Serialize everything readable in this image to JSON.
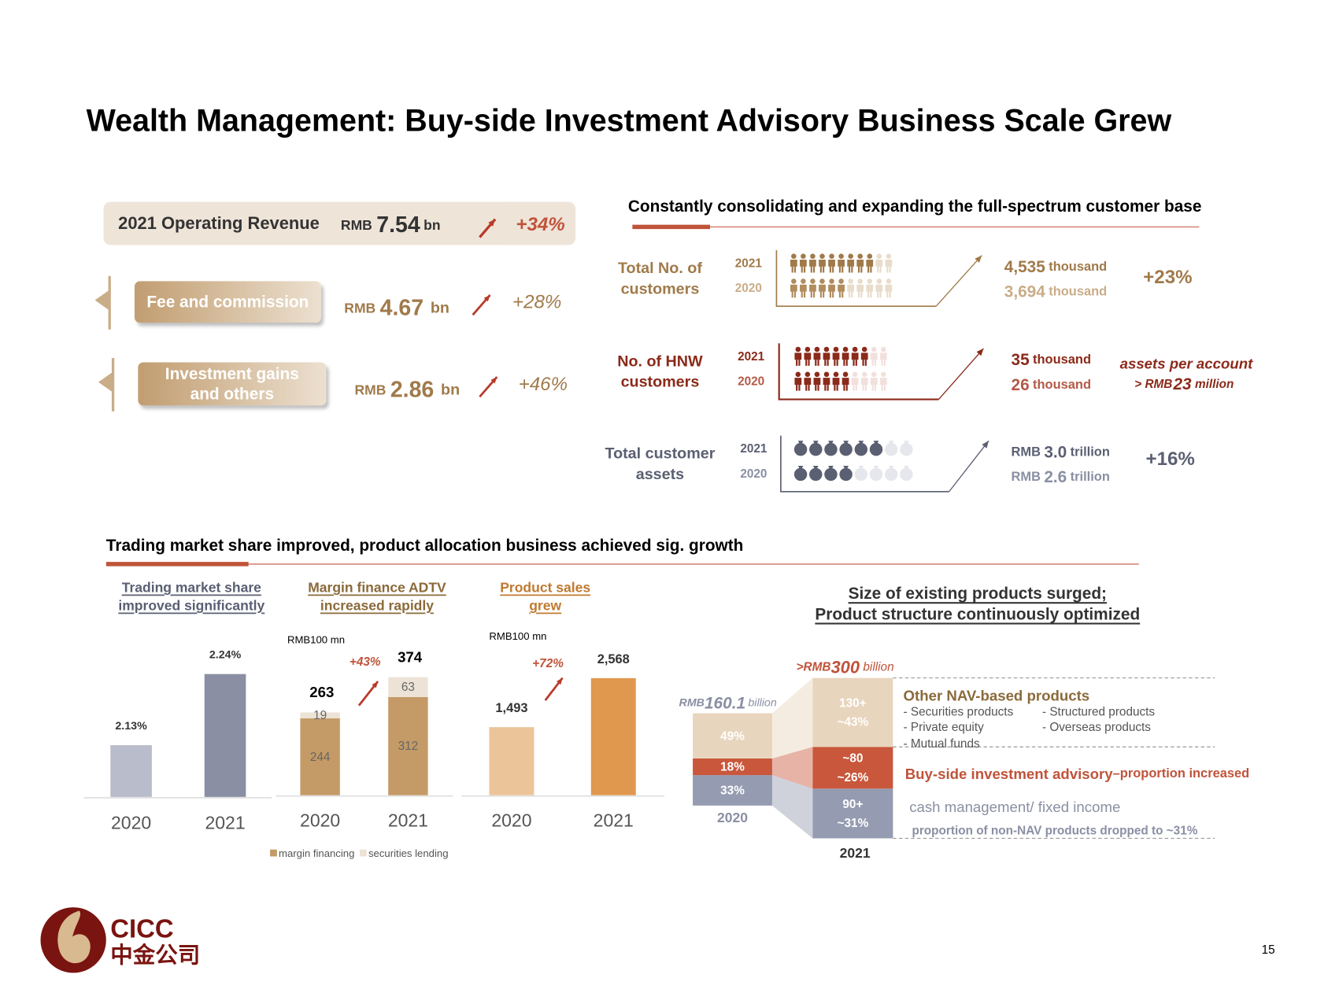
{
  "title": "Wealth Management: Buy-side Investment Advisory Business Scale Grew",
  "revenue": {
    "label": "2021 Operating Revenue",
    "currency": "RMB",
    "value": "7.54",
    "unit": "bn",
    "growth": "+34%",
    "items": [
      {
        "label": [
          "Fee and commission"
        ],
        "currency": "RMB",
        "value": "4.67",
        "unit": "bn",
        "growth": "+28%"
      },
      {
        "label": [
          "Investment gains",
          "and others"
        ],
        "currency": "RMB",
        "value": "2.86",
        "unit": "bn",
        "growth": "+46%"
      }
    ]
  },
  "customers": {
    "heading": "Constantly consolidating and expanding the full-spectrum customer base",
    "rows": [
      {
        "label": [
          "Total No. of",
          "customers"
        ],
        "years": [
          "2021",
          "2020"
        ],
        "amounts": [
          {
            "value": "4,535",
            "unit": "thousand"
          },
          {
            "value": "3,694",
            "unit": "thousand"
          }
        ],
        "growth": "+23%"
      },
      {
        "label": [
          "No. of HNW",
          "customers"
        ],
        "years": [
          "2021",
          "2020"
        ],
        "amounts": [
          {
            "value": "35",
            "unit": "thousand"
          },
          {
            "value": "26",
            "unit": "thousand"
          }
        ],
        "note": {
          "line1": "assets per account",
          "prefix": "> RMB",
          "value": "23",
          "unit": "million"
        }
      },
      {
        "label": [
          "Total customer",
          "assets"
        ],
        "years": [
          "2021",
          "2020"
        ],
        "amounts": [
          {
            "prefix": "RMB",
            "value": "3.0",
            "unit": "trillion"
          },
          {
            "prefix": "RMB",
            "value": "2.6",
            "unit": "trillion"
          }
        ],
        "growth": "+16%"
      }
    ]
  },
  "trading": {
    "heading": "Trading market share improved, product allocation business achieved sig. growth"
  },
  "chart_data": [
    {
      "type": "bar",
      "title": [
        "Trading market share",
        "improved significantly"
      ],
      "categories": [
        "2020",
        "2021"
      ],
      "values": [
        2.13,
        2.24
      ],
      "value_labels": [
        "2.13%",
        "2.24%"
      ],
      "colors": [
        "#b9bcca",
        "#8a8fa3"
      ],
      "ylim": [
        2.05,
        2.25
      ]
    },
    {
      "type": "stacked-bar",
      "title": [
        "Margin finance ADTV",
        "increased rapidly"
      ],
      "unit": "RMB100 mn",
      "categories": [
        "2020",
        "2021"
      ],
      "series": [
        {
          "name": "margin financing",
          "color": "#c49a66",
          "values": [
            244,
            312
          ]
        },
        {
          "name": "securities lending",
          "color": "#ece3d6",
          "values": [
            19,
            63
          ]
        }
      ],
      "totals": [
        263,
        374
      ],
      "growth": "+43%",
      "ylim": [
        0,
        400
      ]
    },
    {
      "type": "bar",
      "title": [
        "Product sales",
        "grew"
      ],
      "unit": "RMB100 mn",
      "categories": [
        "2020",
        "2021"
      ],
      "values": [
        1493,
        2568
      ],
      "value_labels": [
        "1,493",
        "2,568"
      ],
      "colors": [
        "#ecc49a",
        "#e0984f"
      ],
      "growth": "+72%",
      "ylim": [
        0,
        2800
      ]
    },
    {
      "type": "stacked-percent",
      "title": [
        "Size of existing products surged;",
        "Product structure continuously optimized"
      ],
      "categories": [
        "2020",
        "2021"
      ],
      "totals": [
        {
          "prefix": "RMB",
          "value": "160.1",
          "unit": "billion"
        },
        {
          "prefix": ">RMB",
          "value": "300",
          "unit": "billion"
        }
      ],
      "series": [
        {
          "name": "cash management/ fixed income",
          "note": "proportion of non-NAV products dropped to ~31%",
          "color": "#959bb0",
          "values": [
            33,
            31
          ],
          "value_labels": [
            "33%",
            "~31%"
          ],
          "amount_labels": [
            null,
            "90+"
          ]
        },
        {
          "name": "Buy-side investment advisory",
          "note": "–proportion increased",
          "color": "#c9573b",
          "values": [
            18,
            26
          ],
          "value_labels": [
            "18%",
            "~26%"
          ],
          "amount_labels": [
            null,
            "~80"
          ]
        },
        {
          "name": "Other NAV-based products",
          "items": [
            "- Securities products",
            "- Private equity",
            "- Mutual funds",
            "- Structured products",
            "- Overseas products"
          ],
          "color": "#e8d5bd",
          "values": [
            49,
            43
          ],
          "value_labels": [
            "49%",
            "~43%"
          ],
          "amount_labels": [
            null,
            "130+"
          ]
        }
      ]
    }
  ],
  "logo": {
    "name": "CICC",
    "name_cn": "中金公司"
  },
  "page_number": "15"
}
